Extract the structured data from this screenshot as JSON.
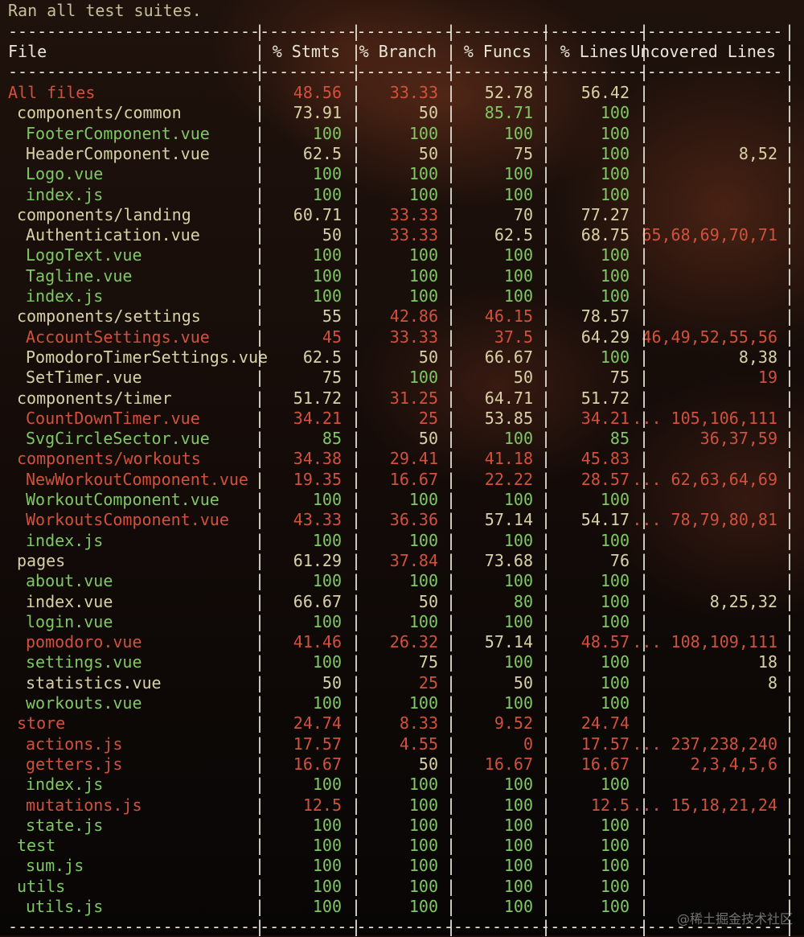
{
  "title": "Ran all test suites.",
  "headers": [
    "File",
    "% Stmts",
    "% Branch",
    "% Funcs",
    "% Lines",
    "Uncovered Lines"
  ],
  "colors": {
    "green": "#7fc864",
    "yellow": "#d9d1a6",
    "red": "#d2513d",
    "white": "#e8e6d9"
  },
  "rows": [
    {
      "file": "All files",
      "indent": 0,
      "fc": "r",
      "stmts": "48.56",
      "sc": "r",
      "branch": "33.33",
      "bc": "r",
      "funcs": "52.78",
      "fnc": "y",
      "lines": "56.42",
      "lc": "y",
      "uncovered": "",
      "uc": "y"
    },
    {
      "file": "components/common",
      "indent": 1,
      "fc": "y",
      "stmts": "73.91",
      "sc": "y",
      "branch": "50",
      "bc": "y",
      "funcs": "85.71",
      "fnc": "g",
      "lines": "100",
      "lc": "g",
      "uncovered": "",
      "uc": "y"
    },
    {
      "file": "FooterComponent.vue",
      "indent": 2,
      "fc": "g",
      "stmts": "100",
      "sc": "g",
      "branch": "100",
      "bc": "g",
      "funcs": "100",
      "fnc": "g",
      "lines": "100",
      "lc": "g",
      "uncovered": "",
      "uc": "y"
    },
    {
      "file": "HeaderComponent.vue",
      "indent": 2,
      "fc": "y",
      "stmts": "62.5",
      "sc": "y",
      "branch": "50",
      "bc": "y",
      "funcs": "75",
      "fnc": "y",
      "lines": "100",
      "lc": "g",
      "uncovered": "8,52",
      "uc": "y"
    },
    {
      "file": "Logo.vue",
      "indent": 2,
      "fc": "g",
      "stmts": "100",
      "sc": "g",
      "branch": "100",
      "bc": "g",
      "funcs": "100",
      "fnc": "g",
      "lines": "100",
      "lc": "g",
      "uncovered": "",
      "uc": "y"
    },
    {
      "file": "index.js",
      "indent": 2,
      "fc": "g",
      "stmts": "100",
      "sc": "g",
      "branch": "100",
      "bc": "g",
      "funcs": "100",
      "fnc": "g",
      "lines": "100",
      "lc": "g",
      "uncovered": "",
      "uc": "y"
    },
    {
      "file": "components/landing",
      "indent": 1,
      "fc": "y",
      "stmts": "60.71",
      "sc": "y",
      "branch": "33.33",
      "bc": "r",
      "funcs": "70",
      "fnc": "y",
      "lines": "77.27",
      "lc": "y",
      "uncovered": "",
      "uc": "y"
    },
    {
      "file": "Authentication.vue",
      "indent": 2,
      "fc": "y",
      "stmts": "50",
      "sc": "y",
      "branch": "33.33",
      "bc": "r",
      "funcs": "62.5",
      "fnc": "y",
      "lines": "68.75",
      "lc": "y",
      "uncovered": "65,68,69,70,71",
      "uc": "r"
    },
    {
      "file": "LogoText.vue",
      "indent": 2,
      "fc": "g",
      "stmts": "100",
      "sc": "g",
      "branch": "100",
      "bc": "g",
      "funcs": "100",
      "fnc": "g",
      "lines": "100",
      "lc": "g",
      "uncovered": "",
      "uc": "y"
    },
    {
      "file": "Tagline.vue",
      "indent": 2,
      "fc": "g",
      "stmts": "100",
      "sc": "g",
      "branch": "100",
      "bc": "g",
      "funcs": "100",
      "fnc": "g",
      "lines": "100",
      "lc": "g",
      "uncovered": "",
      "uc": "y"
    },
    {
      "file": "index.js",
      "indent": 2,
      "fc": "g",
      "stmts": "100",
      "sc": "g",
      "branch": "100",
      "bc": "g",
      "funcs": "100",
      "fnc": "g",
      "lines": "100",
      "lc": "g",
      "uncovered": "",
      "uc": "y"
    },
    {
      "file": "components/settings",
      "indent": 1,
      "fc": "y",
      "stmts": "55",
      "sc": "y",
      "branch": "42.86",
      "bc": "r",
      "funcs": "46.15",
      "fnc": "r",
      "lines": "78.57",
      "lc": "y",
      "uncovered": "",
      "uc": "y"
    },
    {
      "file": "AccountSettings.vue",
      "indent": 2,
      "fc": "r",
      "stmts": "45",
      "sc": "r",
      "branch": "33.33",
      "bc": "r",
      "funcs": "37.5",
      "fnc": "r",
      "lines": "64.29",
      "lc": "y",
      "uncovered": "46,49,52,55,56",
      "uc": "r"
    },
    {
      "file": "PomodoroTimerSettings.vue",
      "indent": 2,
      "fc": "y",
      "stmts": "62.5",
      "sc": "y",
      "branch": "50",
      "bc": "y",
      "funcs": "66.67",
      "fnc": "y",
      "lines": "100",
      "lc": "g",
      "uncovered": "8,38",
      "uc": "y"
    },
    {
      "file": "SetTimer.vue",
      "indent": 2,
      "fc": "y",
      "stmts": "75",
      "sc": "y",
      "branch": "100",
      "bc": "g",
      "funcs": "50",
      "fnc": "y",
      "lines": "75",
      "lc": "y",
      "uncovered": "19",
      "uc": "r"
    },
    {
      "file": "components/timer",
      "indent": 1,
      "fc": "y",
      "stmts": "51.72",
      "sc": "y",
      "branch": "31.25",
      "bc": "r",
      "funcs": "64.71",
      "fnc": "y",
      "lines": "51.72",
      "lc": "y",
      "uncovered": "",
      "uc": "y"
    },
    {
      "file": "CountDownTimer.vue",
      "indent": 2,
      "fc": "r",
      "stmts": "34.21",
      "sc": "r",
      "branch": "25",
      "bc": "r",
      "funcs": "53.85",
      "fnc": "y",
      "lines": "34.21",
      "lc": "r",
      "uncovered": "... 105,106,111",
      "uc": "r"
    },
    {
      "file": "SvgCircleSector.vue",
      "indent": 2,
      "fc": "g",
      "stmts": "85",
      "sc": "g",
      "branch": "50",
      "bc": "y",
      "funcs": "100",
      "fnc": "g",
      "lines": "85",
      "lc": "g",
      "uncovered": "36,37,59",
      "uc": "r"
    },
    {
      "file": "components/workouts",
      "indent": 1,
      "fc": "r",
      "stmts": "34.38",
      "sc": "r",
      "branch": "29.41",
      "bc": "r",
      "funcs": "41.18",
      "fnc": "r",
      "lines": "45.83",
      "lc": "r",
      "uncovered": "",
      "uc": "y"
    },
    {
      "file": "NewWorkoutComponent.vue",
      "indent": 2,
      "fc": "r",
      "stmts": "19.35",
      "sc": "r",
      "branch": "16.67",
      "bc": "r",
      "funcs": "22.22",
      "fnc": "r",
      "lines": "28.57",
      "lc": "r",
      "uncovered": "... 62,63,64,69",
      "uc": "r"
    },
    {
      "file": "WorkoutComponent.vue",
      "indent": 2,
      "fc": "g",
      "stmts": "100",
      "sc": "g",
      "branch": "100",
      "bc": "g",
      "funcs": "100",
      "fnc": "g",
      "lines": "100",
      "lc": "g",
      "uncovered": "",
      "uc": "y"
    },
    {
      "file": "WorkoutsComponent.vue",
      "indent": 2,
      "fc": "r",
      "stmts": "43.33",
      "sc": "r",
      "branch": "36.36",
      "bc": "r",
      "funcs": "57.14",
      "fnc": "y",
      "lines": "54.17",
      "lc": "y",
      "uncovered": "... 78,79,80,81",
      "uc": "r"
    },
    {
      "file": "index.js",
      "indent": 2,
      "fc": "g",
      "stmts": "100",
      "sc": "g",
      "branch": "100",
      "bc": "g",
      "funcs": "100",
      "fnc": "g",
      "lines": "100",
      "lc": "g",
      "uncovered": "",
      "uc": "y"
    },
    {
      "file": "pages",
      "indent": 1,
      "fc": "y",
      "stmts": "61.29",
      "sc": "y",
      "branch": "37.84",
      "bc": "r",
      "funcs": "73.68",
      "fnc": "y",
      "lines": "76",
      "lc": "y",
      "uncovered": "",
      "uc": "y"
    },
    {
      "file": "about.vue",
      "indent": 2,
      "fc": "g",
      "stmts": "100",
      "sc": "g",
      "branch": "100",
      "bc": "g",
      "funcs": "100",
      "fnc": "g",
      "lines": "100",
      "lc": "g",
      "uncovered": "",
      "uc": "y"
    },
    {
      "file": "index.vue",
      "indent": 2,
      "fc": "y",
      "stmts": "66.67",
      "sc": "y",
      "branch": "50",
      "bc": "y",
      "funcs": "80",
      "fnc": "g",
      "lines": "100",
      "lc": "g",
      "uncovered": "8,25,32",
      "uc": "y"
    },
    {
      "file": "login.vue",
      "indent": 2,
      "fc": "g",
      "stmts": "100",
      "sc": "g",
      "branch": "100",
      "bc": "g",
      "funcs": "100",
      "fnc": "g",
      "lines": "100",
      "lc": "g",
      "uncovered": "",
      "uc": "y"
    },
    {
      "file": "pomodoro.vue",
      "indent": 2,
      "fc": "r",
      "stmts": "41.46",
      "sc": "r",
      "branch": "26.32",
      "bc": "r",
      "funcs": "57.14",
      "fnc": "y",
      "lines": "48.57",
      "lc": "r",
      "uncovered": "... 108,109,111",
      "uc": "r"
    },
    {
      "file": "settings.vue",
      "indent": 2,
      "fc": "g",
      "stmts": "100",
      "sc": "g",
      "branch": "75",
      "bc": "y",
      "funcs": "100",
      "fnc": "g",
      "lines": "100",
      "lc": "g",
      "uncovered": "18",
      "uc": "y"
    },
    {
      "file": "statistics.vue",
      "indent": 2,
      "fc": "y",
      "stmts": "50",
      "sc": "y",
      "branch": "25",
      "bc": "r",
      "funcs": "50",
      "fnc": "y",
      "lines": "100",
      "lc": "g",
      "uncovered": "8",
      "uc": "y"
    },
    {
      "file": "workouts.vue",
      "indent": 2,
      "fc": "g",
      "stmts": "100",
      "sc": "g",
      "branch": "100",
      "bc": "g",
      "funcs": "100",
      "fnc": "g",
      "lines": "100",
      "lc": "g",
      "uncovered": "",
      "uc": "y"
    },
    {
      "file": "store",
      "indent": 1,
      "fc": "r",
      "stmts": "24.74",
      "sc": "r",
      "branch": "8.33",
      "bc": "r",
      "funcs": "9.52",
      "fnc": "r",
      "lines": "24.74",
      "lc": "r",
      "uncovered": "",
      "uc": "y"
    },
    {
      "file": "actions.js",
      "indent": 2,
      "fc": "r",
      "stmts": "17.57",
      "sc": "r",
      "branch": "4.55",
      "bc": "r",
      "funcs": "0",
      "fnc": "r",
      "lines": "17.57",
      "lc": "r",
      "uncovered": "... 237,238,240",
      "uc": "r"
    },
    {
      "file": "getters.js",
      "indent": 2,
      "fc": "r",
      "stmts": "16.67",
      "sc": "r",
      "branch": "50",
      "bc": "y",
      "funcs": "16.67",
      "fnc": "r",
      "lines": "16.67",
      "lc": "r",
      "uncovered": "2,3,4,5,6",
      "uc": "r"
    },
    {
      "file": "index.js",
      "indent": 2,
      "fc": "g",
      "stmts": "100",
      "sc": "g",
      "branch": "100",
      "bc": "g",
      "funcs": "100",
      "fnc": "g",
      "lines": "100",
      "lc": "g",
      "uncovered": "",
      "uc": "y"
    },
    {
      "file": "mutations.js",
      "indent": 2,
      "fc": "r",
      "stmts": "12.5",
      "sc": "r",
      "branch": "100",
      "bc": "g",
      "funcs": "100",
      "fnc": "g",
      "lines": "12.5",
      "lc": "r",
      "uncovered": "... 15,18,21,24",
      "uc": "r"
    },
    {
      "file": "state.js",
      "indent": 2,
      "fc": "g",
      "stmts": "100",
      "sc": "g",
      "branch": "100",
      "bc": "g",
      "funcs": "100",
      "fnc": "g",
      "lines": "100",
      "lc": "g",
      "uncovered": "",
      "uc": "y"
    },
    {
      "file": "test",
      "indent": 1,
      "fc": "g",
      "stmts": "100",
      "sc": "g",
      "branch": "100",
      "bc": "g",
      "funcs": "100",
      "fnc": "g",
      "lines": "100",
      "lc": "g",
      "uncovered": "",
      "uc": "y"
    },
    {
      "file": "sum.js",
      "indent": 2,
      "fc": "g",
      "stmts": "100",
      "sc": "g",
      "branch": "100",
      "bc": "g",
      "funcs": "100",
      "fnc": "g",
      "lines": "100",
      "lc": "g",
      "uncovered": "",
      "uc": "y"
    },
    {
      "file": "utils",
      "indent": 1,
      "fc": "g",
      "stmts": "100",
      "sc": "g",
      "branch": "100",
      "bc": "g",
      "funcs": "100",
      "fnc": "g",
      "lines": "100",
      "lc": "g",
      "uncovered": "",
      "uc": "y"
    },
    {
      "file": "utils.js",
      "indent": 2,
      "fc": "g",
      "stmts": "100",
      "sc": "g",
      "branch": "100",
      "bc": "g",
      "funcs": "100",
      "fnc": "g",
      "lines": "100",
      "lc": "g",
      "uncovered": "",
      "uc": "y"
    }
  ],
  "watermark": "@稀土掘金技术社区"
}
